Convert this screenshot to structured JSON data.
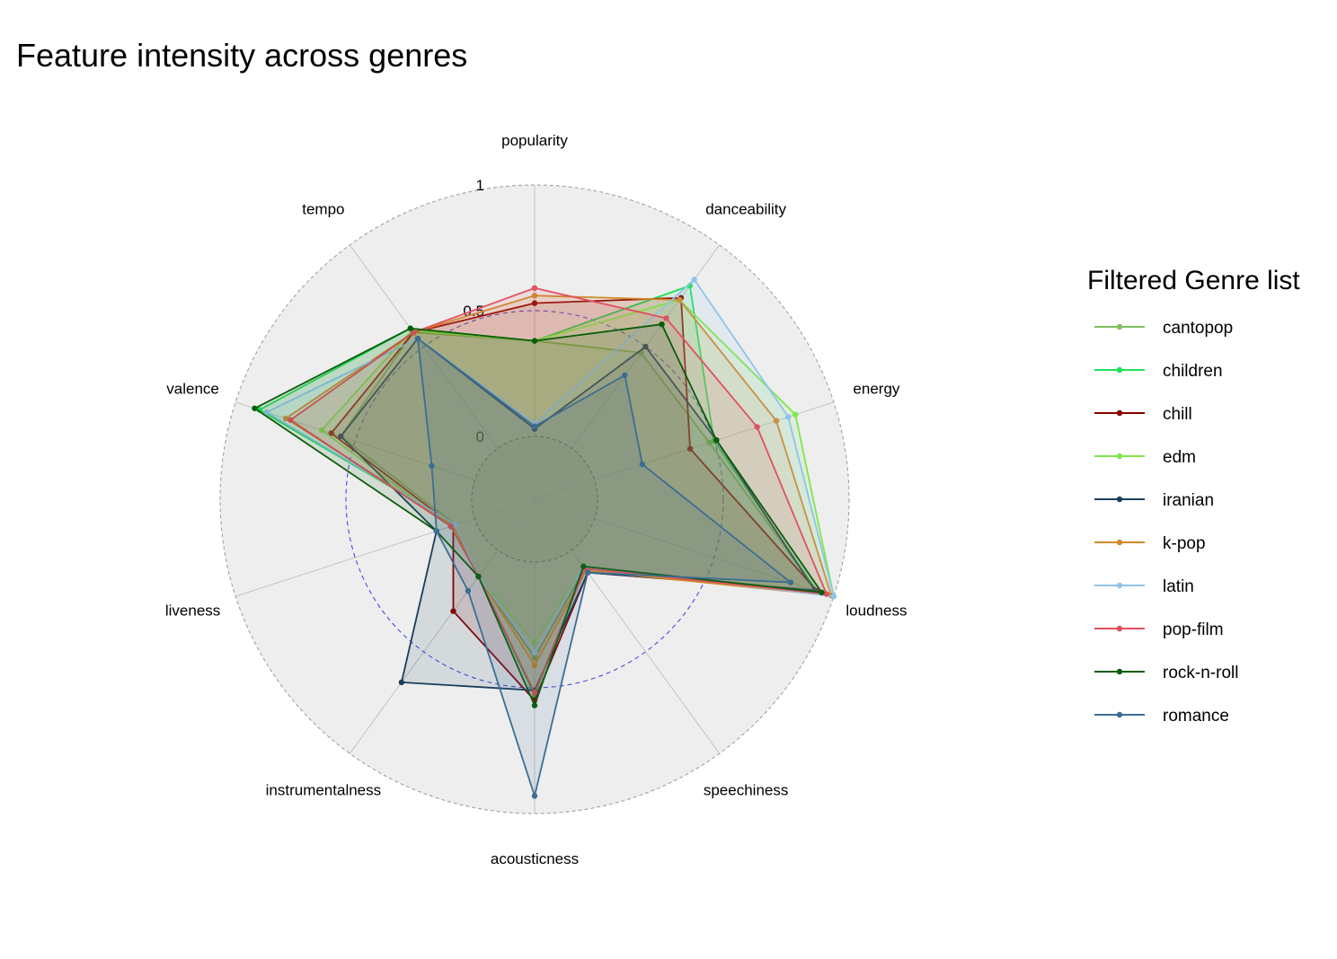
{
  "chart_data": {
    "type": "radar",
    "title": "Feature intensity across genres",
    "axes": [
      "popularity",
      "danceability",
      "energy",
      "loudness",
      "speechiness",
      "acousticness",
      "instrumentalness",
      "liveness",
      "valence",
      "tempo"
    ],
    "ticks": [
      "1",
      "0.5",
      "0"
    ],
    "rlim": [
      -0.25,
      1
    ],
    "legend_title": "Filtered Genre list",
    "legend_position": "right",
    "series": [
      {
        "name": "cantopop",
        "color": "#7fbf5f",
        "values": [
          0.38,
          0.47,
          0.48,
          0.93,
          0.09,
          0.38,
          0.13,
          0.08,
          0.56,
          0.57
        ]
      },
      {
        "name": "children",
        "color": "#1fe05a",
        "values": [
          0.38,
          0.8,
          0.5,
          0.93,
          0.09,
          0.53,
          0.13,
          0.08,
          0.9,
          0.59
        ]
      },
      {
        "name": "chill",
        "color": "#8b0000",
        "values": [
          0.53,
          0.74,
          0.4,
          0.93,
          0.11,
          0.55,
          0.3,
          0.09,
          0.6,
          0.57
        ]
      },
      {
        "name": "edm",
        "color": "#7ee84a",
        "values": [
          0.38,
          0.73,
          0.84,
          1.0,
          0.08,
          0.32,
          0.13,
          0.1,
          0.64,
          0.58
        ]
      },
      {
        "name": "iranian",
        "color": "#1a3f5c",
        "values": [
          0.03,
          0.5,
          0.51,
          0.92,
          0.11,
          0.51,
          0.65,
          0.16,
          0.56,
          0.54
        ]
      },
      {
        "name": "k-pop",
        "color": "#d08a2a",
        "values": [
          0.56,
          0.73,
          0.76,
          0.99,
          0.1,
          0.41,
          0.13,
          0.09,
          0.79,
          0.57
        ]
      },
      {
        "name": "latin",
        "color": "#8ec3eb",
        "values": [
          0.05,
          0.83,
          0.81,
          1.0,
          0.08,
          0.36,
          0.13,
          0.08,
          0.87,
          0.54
        ]
      },
      {
        "name": "pop-film",
        "color": "#e0505f",
        "values": [
          0.59,
          0.64,
          0.68,
          0.97,
          0.09,
          0.52,
          0.13,
          0.1,
          0.77,
          0.57
        ]
      },
      {
        "name": "rock-n-roll",
        "color": "#0a5c0a",
        "values": [
          0.38,
          0.61,
          0.51,
          0.95,
          0.08,
          0.57,
          0.13,
          0.16,
          0.92,
          0.59
        ]
      },
      {
        "name": "romance",
        "color": "#3b6e94",
        "values": [
          0.04,
          0.36,
          0.2,
          0.82,
          0.11,
          0.93,
          0.2,
          0.16,
          0.18,
          0.54
        ]
      }
    ]
  }
}
